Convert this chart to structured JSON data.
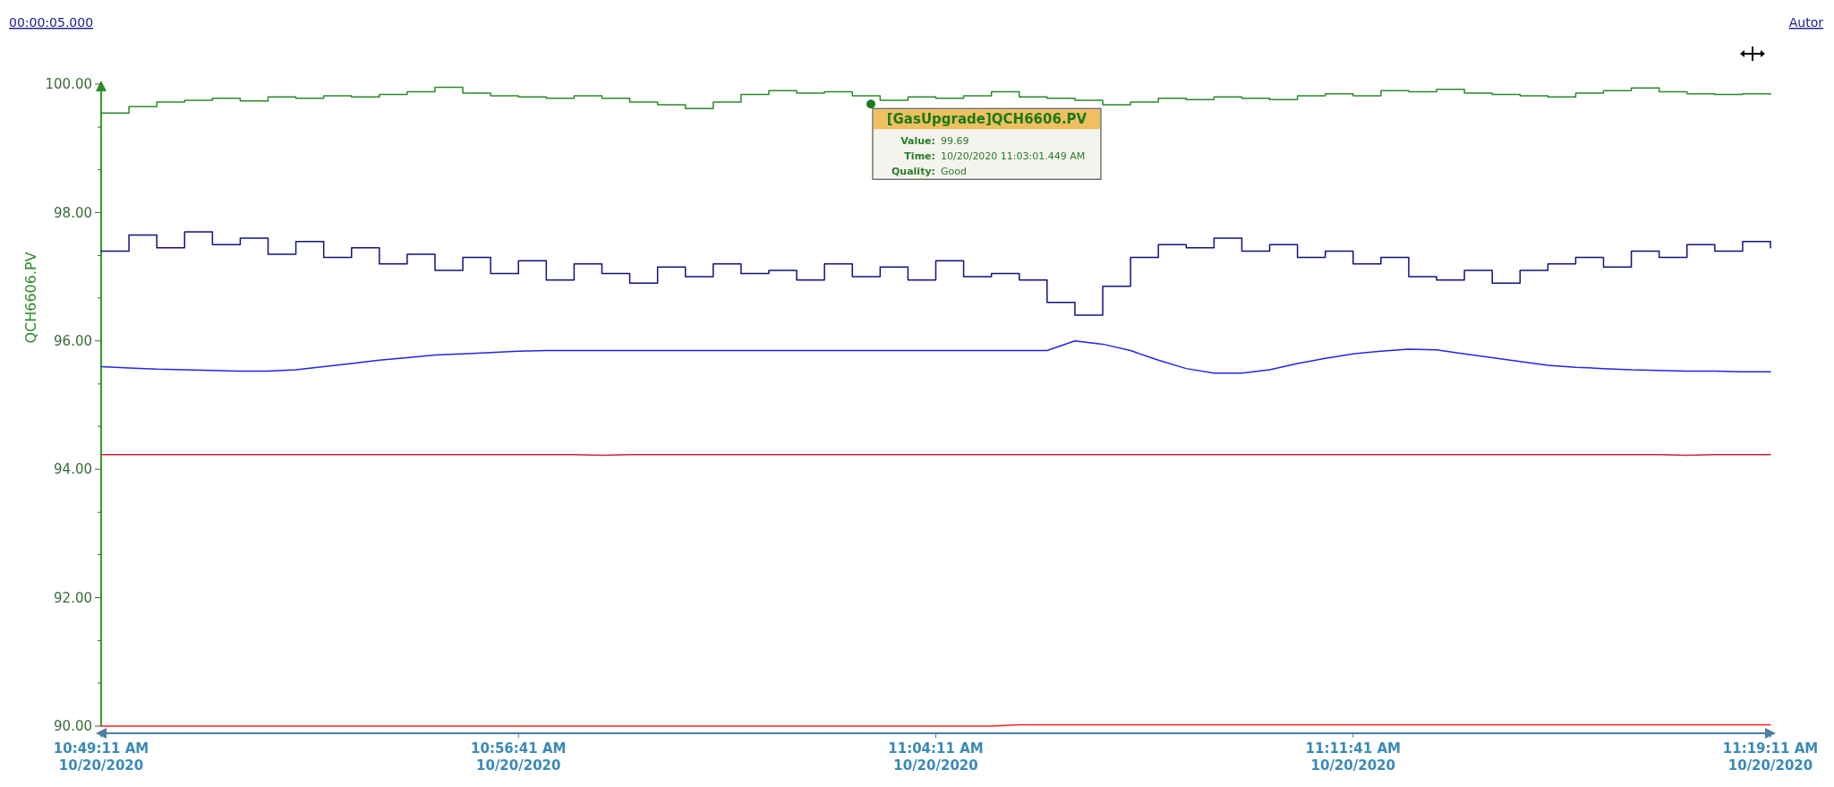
{
  "chart_data": {
    "type": "line",
    "ylabel": "QCH6606.PV",
    "x": [
      "2020-10-20T10:49:11",
      "2020-10-20T10:49:41",
      "2020-10-20T10:50:11",
      "2020-10-20T10:50:41",
      "2020-10-20T10:51:11",
      "2020-10-20T10:51:41",
      "2020-10-20T10:52:11",
      "2020-10-20T10:52:41",
      "2020-10-20T10:53:11",
      "2020-10-20T10:53:41",
      "2020-10-20T10:54:11",
      "2020-10-20T10:54:41",
      "2020-10-20T10:55:11",
      "2020-10-20T10:55:41",
      "2020-10-20T10:56:11",
      "2020-10-20T10:56:41",
      "2020-10-20T10:57:11",
      "2020-10-20T10:57:41",
      "2020-10-20T10:58:11",
      "2020-10-20T10:58:41",
      "2020-10-20T10:59:11",
      "2020-10-20T10:59:41",
      "2020-10-20T11:00:11",
      "2020-10-20T11:00:41",
      "2020-10-20T11:01:11",
      "2020-10-20T11:01:41",
      "2020-10-20T11:02:11",
      "2020-10-20T11:02:41",
      "2020-10-20T11:03:11",
      "2020-10-20T11:03:41",
      "2020-10-20T11:04:11",
      "2020-10-20T11:04:41",
      "2020-10-20T11:05:11",
      "2020-10-20T11:05:41",
      "2020-10-20T11:06:11",
      "2020-10-20T11:06:41",
      "2020-10-20T11:07:11",
      "2020-10-20T11:07:41",
      "2020-10-20T11:08:11",
      "2020-10-20T11:08:41",
      "2020-10-20T11:09:11",
      "2020-10-20T11:09:41",
      "2020-10-20T11:10:11",
      "2020-10-20T11:10:41",
      "2020-10-20T11:11:11",
      "2020-10-20T11:11:41",
      "2020-10-20T11:12:11",
      "2020-10-20T11:12:41",
      "2020-10-20T11:13:11",
      "2020-10-20T11:13:41",
      "2020-10-20T11:14:11",
      "2020-10-20T11:14:41",
      "2020-10-20T11:15:11",
      "2020-10-20T11:15:41",
      "2020-10-20T11:16:11",
      "2020-10-20T11:16:41",
      "2020-10-20T11:17:11",
      "2020-10-20T11:17:41",
      "2020-10-20T11:18:11",
      "2020-10-20T11:18:41",
      "2020-10-20T11:19:11"
    ],
    "series": [
      {
        "type": "step",
        "color": "#2a8a2a",
        "values": [
          99.55,
          99.65,
          99.72,
          99.75,
          99.78,
          99.74,
          99.8,
          99.78,
          99.82,
          99.8,
          99.84,
          99.88,
          99.95,
          99.86,
          99.82,
          99.8,
          99.78,
          99.82,
          99.78,
          99.72,
          99.68,
          99.62,
          99.72,
          99.84,
          99.9,
          99.86,
          99.88,
          99.82,
          99.75,
          99.8,
          99.78,
          99.82,
          99.88,
          99.8,
          99.78,
          99.75,
          99.68,
          99.72,
          99.78,
          99.76,
          99.8,
          99.78,
          99.76,
          99.82,
          99.85,
          99.82,
          99.9,
          99.88,
          99.92,
          99.86,
          99.84,
          99.82,
          99.8,
          99.86,
          99.9,
          99.94,
          99.88,
          99.85,
          99.84,
          99.85,
          99.84
        ]
      },
      {
        "type": "step",
        "color": "#12127e",
        "values": [
          97.4,
          97.65,
          97.45,
          97.7,
          97.5,
          97.6,
          97.35,
          97.55,
          97.3,
          97.45,
          97.2,
          97.35,
          97.1,
          97.3,
          97.05,
          97.25,
          96.95,
          97.2,
          97.05,
          96.9,
          97.15,
          97.0,
          97.2,
          97.05,
          97.1,
          96.95,
          97.2,
          97.0,
          97.15,
          96.95,
          97.25,
          97.0,
          97.05,
          96.95,
          96.6,
          96.4,
          96.85,
          97.3,
          97.5,
          97.45,
          97.6,
          97.4,
          97.5,
          97.3,
          97.4,
          97.2,
          97.3,
          97.0,
          96.95,
          97.1,
          96.9,
          97.1,
          97.2,
          97.3,
          97.15,
          97.4,
          97.3,
          97.5,
          97.4,
          97.55,
          97.45
        ]
      },
      {
        "type": "line",
        "color": "#2424f0",
        "values": [
          95.6,
          95.58,
          95.56,
          95.55,
          95.54,
          95.53,
          95.53,
          95.55,
          95.6,
          95.65,
          95.7,
          95.74,
          95.78,
          95.8,
          95.82,
          95.84,
          95.85,
          95.85,
          95.85,
          95.85,
          95.85,
          95.85,
          95.85,
          95.85,
          95.85,
          95.85,
          95.85,
          95.85,
          95.85,
          95.85,
          95.85,
          95.85,
          95.85,
          95.85,
          95.85,
          96.0,
          95.95,
          95.85,
          95.7,
          95.57,
          95.5,
          95.5,
          95.55,
          95.65,
          95.73,
          95.8,
          95.84,
          95.87,
          95.86,
          95.8,
          95.74,
          95.68,
          95.62,
          95.59,
          95.57,
          95.55,
          95.54,
          95.53,
          95.53,
          95.52,
          95.52
        ]
      },
      {
        "type": "line",
        "color": "#d0203c",
        "values": [
          94.23,
          94.23,
          94.23,
          94.23,
          94.23,
          94.23,
          94.23,
          94.23,
          94.23,
          94.23,
          94.23,
          94.23,
          94.23,
          94.23,
          94.23,
          94.23,
          94.23,
          94.23,
          94.22,
          94.23,
          94.23,
          94.23,
          94.23,
          94.23,
          94.23,
          94.23,
          94.23,
          94.23,
          94.23,
          94.23,
          94.23,
          94.23,
          94.23,
          94.23,
          94.23,
          94.23,
          94.23,
          94.23,
          94.23,
          94.23,
          94.23,
          94.23,
          94.23,
          94.23,
          94.23,
          94.23,
          94.23,
          94.23,
          94.23,
          94.23,
          94.23,
          94.23,
          94.23,
          94.23,
          94.23,
          94.23,
          94.23,
          94.22,
          94.23,
          94.23,
          94.23
        ]
      },
      {
        "type": "line",
        "color": "#ff2020",
        "values": [
          90.0,
          90.0,
          90.0,
          90.0,
          90.0,
          90.0,
          90.0,
          90.0,
          90.0,
          90.0,
          90.0,
          90.0,
          90.0,
          90.0,
          90.0,
          90.0,
          90.0,
          90.0,
          90.0,
          90.0,
          90.0,
          90.0,
          90.0,
          90.0,
          90.0,
          90.0,
          90.0,
          90.0,
          90.0,
          90.0,
          90.0,
          90.0,
          90.0,
          90.02,
          90.02,
          90.02,
          90.02,
          90.02,
          90.02,
          90.02,
          90.02,
          90.02,
          90.02,
          90.02,
          90.02,
          90.02,
          90.02,
          90.02,
          90.02,
          90.02,
          90.02,
          90.02,
          90.02,
          90.02,
          90.02,
          90.02,
          90.02,
          90.02,
          90.02,
          90.02,
          90.02
        ]
      }
    ],
    "xlim": [
      "2020-10-20T10:49:11",
      "2020-10-20T11:19:11"
    ],
    "xticks": [
      {
        "value": "2020-10-20T10:49:11",
        "label": "10:49:11 AM\n10/20/2020"
      },
      {
        "value": "2020-10-20T10:56:41",
        "label": "10:56:41 AM\n10/20/2020"
      },
      {
        "value": "2020-10-20T11:04:11",
        "label": "11:04:11 AM\n10/20/2020"
      },
      {
        "value": "2020-10-20T11:11:41",
        "label": "11:11:41 AM\n10/20/2020"
      },
      {
        "value": "2020-10-20T11:19:11",
        "label": "11:19:11 AM\n10/20/2020"
      }
    ],
    "ylim": [
      90,
      100
    ],
    "yticks": [
      {
        "value": 90,
        "label": "90.00"
      },
      {
        "value": 90.67,
        "label": null
      },
      {
        "value": 91.33,
        "label": null
      },
      {
        "value": 92,
        "label": "92.00"
      },
      {
        "value": 92.67,
        "label": null
      },
      {
        "value": 93.33,
        "label": null
      },
      {
        "value": 94,
        "label": "94.00"
      },
      {
        "value": 94.67,
        "label": null
      },
      {
        "value": 95.33,
        "label": null
      },
      {
        "value": 96,
        "label": "96.00"
      },
      {
        "value": 96.67,
        "label": null
      },
      {
        "value": 97.33,
        "label": null
      },
      {
        "value": 98,
        "label": "98.00"
      },
      {
        "value": 98.67,
        "label": null
      },
      {
        "value": 99.33,
        "label": null
      },
      {
        "value": 100,
        "label": "100.00"
      }
    ],
    "grid": false,
    "annotations": [
      "00:00:05.000",
      "Autor",
      {
        "text": "[GasUpgrade]QCH6606.PV\nValue: 99.69\nTime: 10/20/2020 11:03:01.449 AM\nQuality: Good",
        "x": "2020-10-20T11:03:01",
        "y": 99.69
      }
    ]
  }
}
